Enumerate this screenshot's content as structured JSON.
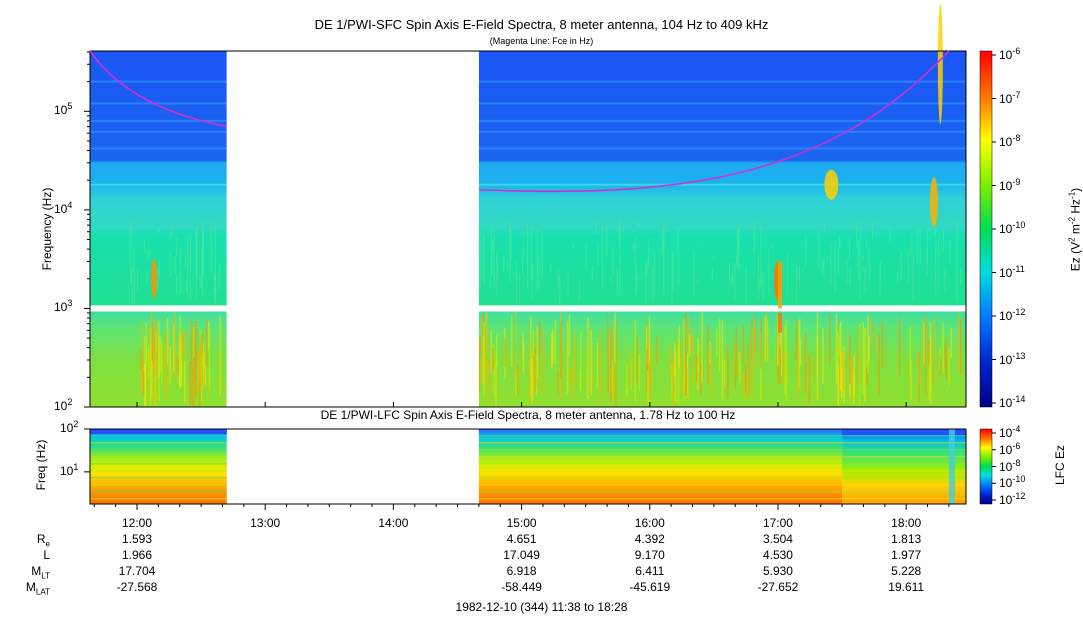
{
  "chart_data": [
    {
      "type": "heatmap",
      "title": "DE 1/PWI-SFC  Spin Axis E-Field Spectra, 8 meter antenna, 104 Hz to 409 kHz",
      "subtitle": "(Magenta Line: Fce in Hz)",
      "ylabel": "Frequency (Hz)",
      "yscale": "log",
      "ylim": [
        100,
        409000
      ],
      "yticks": [
        "10^2",
        "10^3",
        "10^4",
        "10^5"
      ],
      "colorbar": {
        "label": "Ez (V^2 m^-2 Hz^-1)",
        "scale": "log",
        "ticks": [
          "10^-6",
          "10^-7",
          "10^-8",
          "10^-9",
          "10^-10",
          "10^-11",
          "10^-12",
          "10^-13",
          "10^-14"
        ]
      },
      "data_gap": [
        "12:42",
        "14:40"
      ],
      "fce_line": {
        "color": "#cc33cc",
        "segments": [
          {
            "time": [
              "11:38",
              "12:42"
            ],
            "freq_hz": [
              420000,
              70000
            ]
          },
          {
            "time": [
              "14:40",
              "18:20"
            ],
            "freq_hz": [
              16000,
              500000
            ]
          }
        ]
      }
    },
    {
      "type": "heatmap",
      "title": "DE 1/PWI-LFC  Spin Axis E-Field Spectra, 8 meter antenna, 1.78 Hz to 100 Hz",
      "ylabel": "Freq (Hz)",
      "yscale": "log",
      "ylim": [
        1.78,
        100
      ],
      "yticks": [
        "10^1",
        "10^2"
      ],
      "colorbar": {
        "label": "LFC Ez",
        "scale": "log",
        "ticks": [
          "10^-4",
          "10^-6",
          "10^-8",
          "10^-10",
          "10^-12"
        ]
      },
      "data_gap": [
        "12:42",
        "14:40"
      ]
    }
  ],
  "x_axis": {
    "ticks": [
      "12:00",
      "13:00",
      "14:00",
      "15:00",
      "16:00",
      "17:00",
      "18:00"
    ],
    "range": [
      "11:38",
      "18:28"
    ]
  },
  "ephemeris": {
    "labels": [
      {
        "base": "R",
        "sub": "e"
      },
      {
        "base": "L",
        "sub": ""
      },
      {
        "base": "M",
        "sub": "LT"
      },
      {
        "base": "M",
        "sub": "LAT"
      }
    ],
    "columns": [
      {
        "time": "12:00",
        "values": [
          "1.593",
          "1.966",
          "17.704",
          "-27.568"
        ]
      },
      {
        "time": "15:00",
        "values": [
          "4.651",
          "17.049",
          "6.918",
          "-58.449"
        ]
      },
      {
        "time": "16:00",
        "values": [
          "4.392",
          "9.170",
          "6.411",
          "-45.619"
        ]
      },
      {
        "time": "17:00",
        "values": [
          "3.504",
          "4.530",
          "5.930",
          "-27.652"
        ]
      },
      {
        "time": "18:00",
        "values": [
          "1.813",
          "1.977",
          "5.228",
          "19.611"
        ]
      }
    ]
  },
  "footer": "1982-12-10 (344) 11:38 to 18:28"
}
